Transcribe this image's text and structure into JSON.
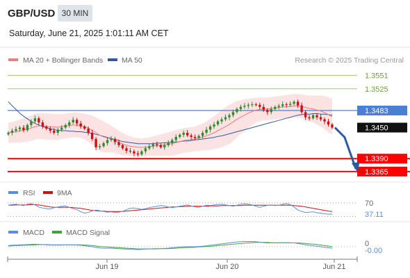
{
  "header": {
    "symbol": "GBP/USD",
    "timeframe": "30 MIN",
    "datetime": "Saturday, June 21, 2025 1:01:11 AM CET"
  },
  "legend": {
    "ma20_bb": "MA 20 + Bollinger Bands",
    "ma50": "MA 50",
    "research": "Research © 2025 Trading Central",
    "rsi": "RSI",
    "rsi_ma": "9MA",
    "macd": "MACD",
    "macd_signal": "MACD Signal"
  },
  "colors": {
    "bullish": "#2e8b2e",
    "bearish": "#cc1111",
    "ma20": "#f07b7b",
    "ma50": "#2c5aa0",
    "bollinger_fill": "#fbdada",
    "support": "#ff0000",
    "resistance": "#9ccc65",
    "pivot": "#4a7fd4",
    "arrow": "#2c5aa0",
    "rsi": "#5b8ed8",
    "macd": "#5b8ed8",
    "macd_signal": "#3aa63a"
  },
  "chart_data": [
    {
      "type": "candlestick",
      "series_name": "GBP/USD",
      "timeframe": "30 MIN",
      "x_ticks": [
        "Jun 19",
        "Jun 20",
        "Jun 21"
      ],
      "ylim": [
        1.335,
        1.3565
      ],
      "last_price": 1.345,
      "levels": [
        {
          "value": 1.3551,
          "label": "1.3551",
          "kind": "resistance"
        },
        {
          "value": 1.3525,
          "label": "1.3525",
          "kind": "resistance"
        },
        {
          "value": 1.3483,
          "label": "1.3483",
          "kind": "pivot"
        },
        {
          "value": 1.345,
          "label": "1.3450",
          "kind": "last"
        },
        {
          "value": 1.339,
          "label": "1.3390",
          "kind": "support"
        },
        {
          "value": 1.3365,
          "label": "1.3365",
          "kind": "support"
        }
      ],
      "close": [
        1.344,
        1.3444,
        1.3447,
        1.345,
        1.3445,
        1.3455,
        1.3462,
        1.3468,
        1.346,
        1.3452,
        1.3448,
        1.3444,
        1.344,
        1.3446,
        1.345,
        1.3455,
        1.346,
        1.3465,
        1.3458,
        1.3452,
        1.3448,
        1.344,
        1.3428,
        1.3412,
        1.3414,
        1.342,
        1.3426,
        1.3428,
        1.3422,
        1.3416,
        1.341,
        1.3405,
        1.3404,
        1.34,
        1.3398,
        1.3404,
        1.341,
        1.3414,
        1.3418,
        1.3416,
        1.3412,
        1.3416,
        1.342,
        1.3426,
        1.3432,
        1.3436,
        1.344,
        1.3435,
        1.3432,
        1.343,
        1.3434,
        1.344,
        1.3446,
        1.3452,
        1.3456,
        1.3462,
        1.3466,
        1.347,
        1.3474,
        1.348,
        1.3486,
        1.349,
        1.3492,
        1.3494,
        1.3495,
        1.3494,
        1.349,
        1.3484,
        1.348,
        1.3486,
        1.349,
        1.3492,
        1.3495,
        1.3494,
        1.3496,
        1.35,
        1.3493,
        1.348,
        1.347,
        1.3468,
        1.3474,
        1.347,
        1.3466,
        1.3462,
        1.3456,
        1.345
      ],
      "ma20": [
        1.344,
        1.3441,
        1.3442,
        1.3444,
        1.3445,
        1.3447,
        1.3449,
        1.3452,
        1.3453,
        1.3453,
        1.3452,
        1.3452,
        1.3451,
        1.3451,
        1.3452,
        1.3453,
        1.3454,
        1.3455,
        1.3455,
        1.3454,
        1.3452,
        1.3449,
        1.3445,
        1.344,
        1.3435,
        1.3432,
        1.343,
        1.3428,
        1.3425,
        1.3421,
        1.3418,
        1.3416,
        1.3414,
        1.3413,
        1.3412,
        1.3412,
        1.3412,
        1.3413,
        1.3414,
        1.3415,
        1.3416,
        1.3417,
        1.3418,
        1.3419,
        1.3421,
        1.3423,
        1.3425,
        1.3426,
        1.3427,
        1.3428,
        1.343,
        1.3432,
        1.3434,
        1.3437,
        1.344,
        1.3444,
        1.3448,
        1.3452,
        1.3456,
        1.3461,
        1.3466,
        1.347,
        1.3474,
        1.3478,
        1.3481,
        1.3484,
        1.3485,
        1.3486,
        1.3486,
        1.3487,
        1.3488,
        1.3489,
        1.349,
        1.349,
        1.3491,
        1.3492,
        1.3492,
        1.3491,
        1.3489,
        1.3487,
        1.3486,
        1.3484,
        1.3482,
        1.3479,
        1.3475,
        1.3471
      ],
      "bb_upper": [
        1.346,
        1.3461,
        1.3463,
        1.3466,
        1.3468,
        1.3471,
        1.3474,
        1.3477,
        1.3478,
        1.3478,
        1.3478,
        1.3477,
        1.3476,
        1.3476,
        1.3476,
        1.3477,
        1.3478,
        1.3479,
        1.3479,
        1.3478,
        1.3477,
        1.3475,
        1.3473,
        1.347,
        1.3466,
        1.3462,
        1.3458,
        1.3454,
        1.3449,
        1.3444,
        1.344,
        1.3436,
        1.3433,
        1.3431,
        1.343,
        1.3429,
        1.343,
        1.3431,
        1.3433,
        1.3435,
        1.3437,
        1.3439,
        1.3441,
        1.3443,
        1.3445,
        1.3447,
        1.3449,
        1.345,
        1.3451,
        1.3452,
        1.3455,
        1.3458,
        1.3462,
        1.3467,
        1.3472,
        1.3478,
        1.3484,
        1.3489,
        1.3494,
        1.3498,
        1.3501,
        1.3503,
        1.3505,
        1.3506,
        1.3507,
        1.3508,
        1.3508,
        1.3508,
        1.3508,
        1.3509,
        1.351,
        1.3511,
        1.3512,
        1.3513,
        1.3514,
        1.3515,
        1.3515,
        1.3514,
        1.3513,
        1.3512,
        1.3512,
        1.3512,
        1.3512,
        1.3511,
        1.3509,
        1.3506
      ],
      "bb_lower": [
        1.342,
        1.3421,
        1.3421,
        1.3422,
        1.3422,
        1.3423,
        1.3424,
        1.3427,
        1.3428,
        1.3428,
        1.3426,
        1.3427,
        1.3426,
        1.3426,
        1.3428,
        1.3429,
        1.343,
        1.3431,
        1.3431,
        1.343,
        1.3427,
        1.3423,
        1.3417,
        1.341,
        1.3404,
        1.3402,
        1.3402,
        1.3402,
        1.3401,
        1.3398,
        1.3396,
        1.3396,
        1.3395,
        1.3395,
        1.3394,
        1.3395,
        1.3394,
        1.3395,
        1.3395,
        1.3395,
        1.3395,
        1.3395,
        1.3395,
        1.3395,
        1.3397,
        1.3399,
        1.3401,
        1.3402,
        1.3403,
        1.3404,
        1.3405,
        1.3406,
        1.3406,
        1.3407,
        1.3408,
        1.341,
        1.3412,
        1.3415,
        1.3418,
        1.3424,
        1.3431,
        1.3437,
        1.3443,
        1.345,
        1.3455,
        1.346,
        1.3462,
        1.3464,
        1.3464,
        1.3465,
        1.3466,
        1.3467,
        1.3468,
        1.3467,
        1.3468,
        1.3469,
        1.3469,
        1.3468,
        1.3465,
        1.3462,
        1.346,
        1.3456,
        1.3452,
        1.3447,
        1.3441,
        1.3436
      ],
      "ma50": [
        1.35,
        1.3492,
        1.3485,
        1.3478,
        1.3472,
        1.3467,
        1.3462,
        1.3458,
        1.3455,
        1.3452,
        1.345,
        1.3448,
        1.3446,
        1.3445,
        1.3444,
        1.3444,
        1.3443,
        1.3443,
        1.3442,
        1.3442,
        1.3441,
        1.344,
        1.3439,
        1.3437,
        1.3435,
        1.3433,
        1.3431,
        1.3429,
        1.3427,
        1.3425,
        1.3423,
        1.3422,
        1.3421,
        1.342,
        1.3419,
        1.3419,
        1.3419,
        1.3419,
        1.3419,
        1.342,
        1.342,
        1.3421,
        1.3421,
        1.3422,
        1.3422,
        1.3423,
        1.3424,
        1.3424,
        1.3425,
        1.3426,
        1.3427,
        1.3428,
        1.3429,
        1.343,
        1.3431,
        1.3433,
        1.3434,
        1.3436,
        1.3438,
        1.344,
        1.3442,
        1.3444,
        1.3446,
        1.3448,
        1.345,
        1.3452,
        1.3454,
        1.3456,
        1.3458,
        1.346,
        1.3462,
        1.3464,
        1.3466,
        1.3468,
        1.347,
        1.3472,
        1.3474,
        1.3475,
        1.3476,
        1.3476,
        1.3477,
        1.3477,
        1.3476,
        1.3476,
        1.3475,
        1.3474
      ]
    },
    {
      "type": "line",
      "panel": "RSI",
      "ylim": [
        25,
        80
      ],
      "levels": [
        {
          "value": 70,
          "label": "70"
        }
      ],
      "current_label": "37.11",
      "series": [
        {
          "name": "RSI",
          "values": [
            63,
            65,
            66,
            64,
            62,
            66,
            68,
            64,
            58,
            55,
            53,
            52,
            56,
            58,
            60,
            61,
            57,
            53,
            50,
            44,
            40,
            42,
            46,
            49,
            47,
            45,
            43,
            44,
            42,
            43,
            45,
            50,
            54,
            55,
            53,
            51,
            53,
            56,
            58,
            60,
            62,
            61,
            58,
            56,
            58,
            60,
            62,
            64,
            61,
            58,
            57,
            60,
            63,
            62,
            64,
            65,
            66,
            64,
            62,
            60,
            63,
            66,
            67,
            66,
            64,
            60,
            57,
            60,
            63,
            64,
            62,
            63,
            66,
            68,
            65,
            58,
            49,
            45,
            42,
            43,
            44,
            41,
            40,
            38,
            37,
            37
          ]
        },
        {
          "name": "9MA",
          "values": [
            63,
            63,
            64,
            64,
            64,
            64,
            65,
            65,
            64,
            62,
            60,
            58,
            57,
            57,
            57,
            57,
            57,
            56,
            55,
            54,
            52,
            50,
            48,
            47,
            46,
            46,
            45,
            45,
            45,
            45,
            45,
            46,
            47,
            48,
            49,
            50,
            51,
            52,
            53,
            54,
            55,
            56,
            57,
            58,
            58,
            59,
            59,
            60,
            60,
            60,
            60,
            60,
            60,
            61,
            61,
            61,
            62,
            62,
            62,
            62,
            62,
            62,
            63,
            63,
            63,
            63,
            63,
            63,
            63,
            63,
            63,
            63,
            63,
            63,
            63,
            62,
            61,
            60,
            58,
            56,
            54,
            52,
            50,
            48,
            46,
            45
          ]
        }
      ]
    },
    {
      "type": "line",
      "panel": "MACD",
      "ylim": [
        -0.0035,
        0.0035
      ],
      "levels": [
        {
          "value": 0,
          "label": "0"
        }
      ],
      "current_label": "-0.00",
      "series": [
        {
          "name": "MACD",
          "values": [
            0.0005,
            0.0006,
            0.0007,
            0.0008,
            0.0008,
            0.0009,
            0.001,
            0.0011,
            0.001,
            0.0009,
            0.0008,
            0.0007,
            0.0007,
            0.0007,
            0.0007,
            0.0008,
            0.0008,
            0.0008,
            0.0007,
            0.0006,
            0.0004,
            0.0002,
            0.0,
            -0.0003,
            -0.0005,
            -0.0006,
            -0.0006,
            -0.0006,
            -0.0007,
            -0.0008,
            -0.0009,
            -0.001,
            -0.0011,
            -0.0011,
            -0.0012,
            -0.0011,
            -0.001,
            -0.0009,
            -0.0008,
            -0.0008,
            -0.0008,
            -0.0007,
            -0.0006,
            -0.0004,
            -0.0003,
            -0.0001,
            0.0,
            0.0,
            0.0,
            0.0,
            0.0001,
            0.0002,
            0.0004,
            0.0006,
            0.0008,
            0.001,
            0.0012,
            0.0014,
            0.0016,
            0.0018,
            0.002,
            0.0021,
            0.0022,
            0.0022,
            0.0022,
            0.0021,
            0.0019,
            0.0017,
            0.0016,
            0.0016,
            0.0016,
            0.0016,
            0.0017,
            0.0016,
            0.0016,
            0.0016,
            0.0014,
            0.0011,
            0.0008,
            0.0006,
            0.0004,
            0.0002,
            0.0,
            -0.0002,
            -0.0004,
            -0.0006
          ]
        },
        {
          "name": "MACD Signal",
          "values": [
            0.0003,
            0.0004,
            0.0005,
            0.0005,
            0.0006,
            0.0007,
            0.0007,
            0.0008,
            0.0009,
            0.0009,
            0.0009,
            0.0008,
            0.0008,
            0.0008,
            0.0008,
            0.0008,
            0.0008,
            0.0008,
            0.0008,
            0.0008,
            0.0007,
            0.0006,
            0.0005,
            0.0003,
            0.0001,
            0.0,
            -0.0001,
            -0.0002,
            -0.0003,
            -0.0004,
            -0.0005,
            -0.0006,
            -0.0007,
            -0.0008,
            -0.0009,
            -0.0009,
            -0.0009,
            -0.0009,
            -0.0009,
            -0.0009,
            -0.0008,
            -0.0008,
            -0.0008,
            -0.0007,
            -0.0006,
            -0.0005,
            -0.0004,
            -0.0003,
            -0.0003,
            -0.0002,
            -0.0001,
            0.0,
            0.0001,
            0.0002,
            0.0003,
            0.0005,
            0.0006,
            0.0008,
            0.0009,
            0.0011,
            0.0012,
            0.0014,
            0.0015,
            0.0016,
            0.0017,
            0.0018,
            0.0018,
            0.0018,
            0.0018,
            0.0017,
            0.0017,
            0.0017,
            0.0017,
            0.0017,
            0.0017,
            0.0016,
            0.0016,
            0.0015,
            0.0014,
            0.0012,
            0.0011,
            0.0009,
            0.0007,
            0.0005,
            0.0003,
            0.0001
          ]
        }
      ]
    }
  ]
}
